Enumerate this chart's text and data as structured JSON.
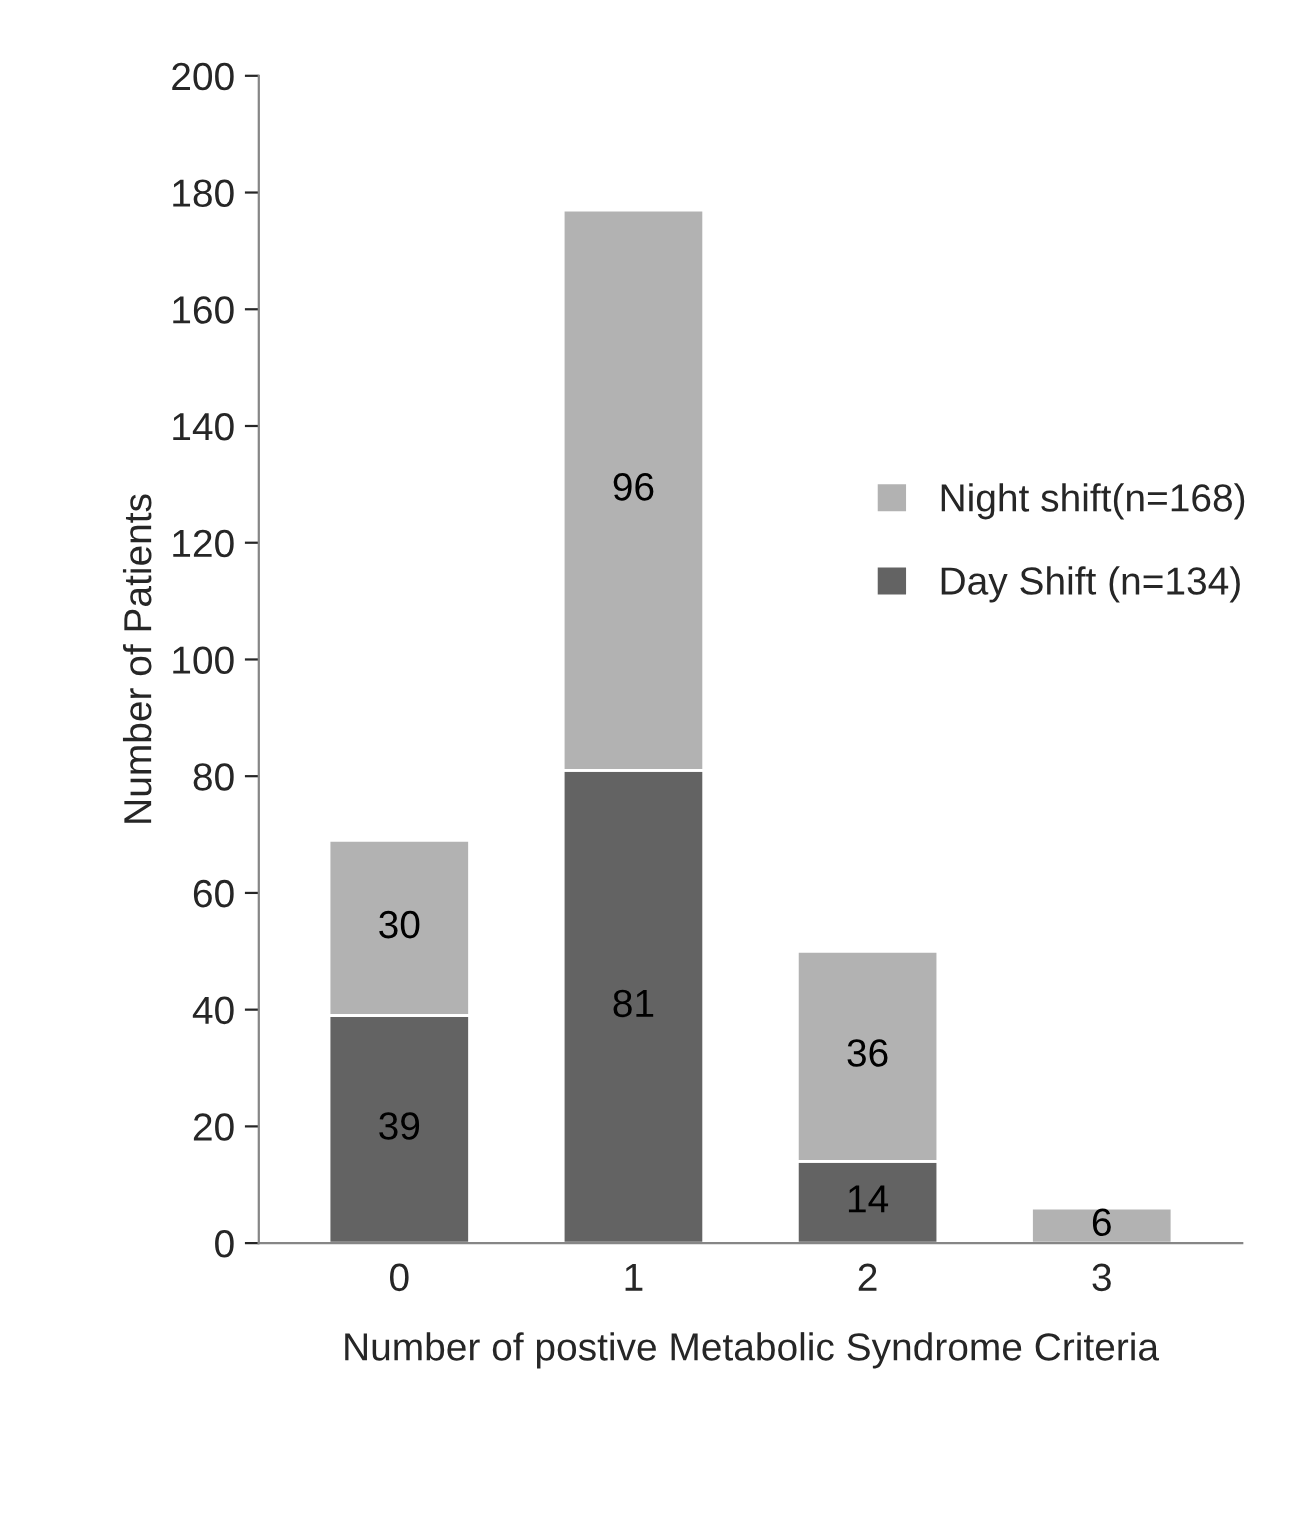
{
  "chart_data": {
    "type": "bar",
    "stacked": true,
    "xlabel": "Number of postive Metabolic Syndrome Criteria",
    "ylabel": "Number of Patients",
    "categories": [
      "0",
      "1",
      "2",
      "3"
    ],
    "series": [
      {
        "name": "Day Shift (n=134)",
        "color": "#636363",
        "values": [
          39,
          81,
          14,
          null
        ]
      },
      {
        "name": "Night shift(n=168)",
        "color": "#b2b2b2",
        "values": [
          30,
          96,
          36,
          6
        ]
      }
    ],
    "ylim": [
      0,
      200
    ],
    "yticks": [
      0,
      20,
      40,
      60,
      80,
      100,
      120,
      140,
      160,
      180,
      200
    ],
    "grid": false,
    "legend": "right",
    "data_labels": true
  }
}
